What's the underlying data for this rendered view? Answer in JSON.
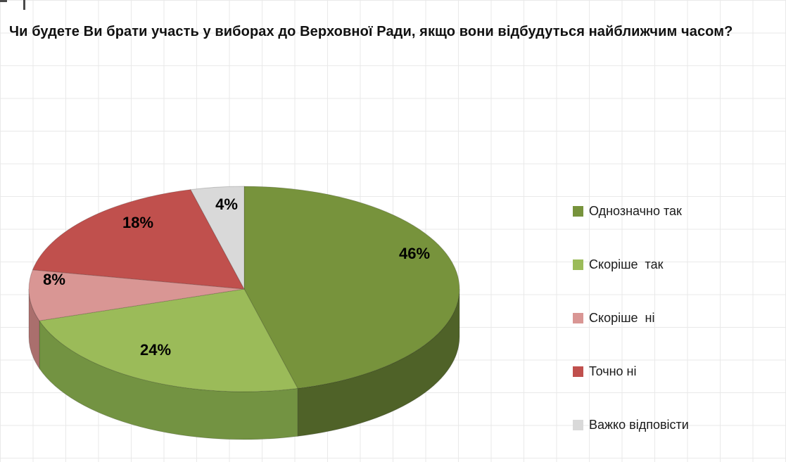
{
  "title": "Чи будете Ви брати участь у виборах до Верховної Ради, якщо вони відбудуться найближчим часом?",
  "chart_data": {
    "type": "pie",
    "title": "Чи будете Ви брати участь у виборах до Верховної Ради, якщо вони відбудуться найближчим часом?",
    "labels": [
      "Однозначно так",
      "Скоріше  так",
      "Скоріше  ні",
      "Точно ні",
      "Важко відповісти"
    ],
    "values": [
      46,
      24,
      8,
      18,
      4
    ],
    "value_labels": [
      "46%",
      "24%",
      "8%",
      "18%",
      "4%"
    ],
    "colors": [
      "#77933C",
      "#9BBB59",
      "#D99694",
      "#C0504D",
      "#D9D9D9"
    ],
    "side_colors": [
      "#4F6228",
      "#739342",
      "#AA6F6D",
      "#8E3B39",
      "#A6A6A6"
    ],
    "start_angle_deg": 0,
    "direction": "clockwise",
    "effect": "3d",
    "legend_position": "right",
    "grid_background": true
  }
}
